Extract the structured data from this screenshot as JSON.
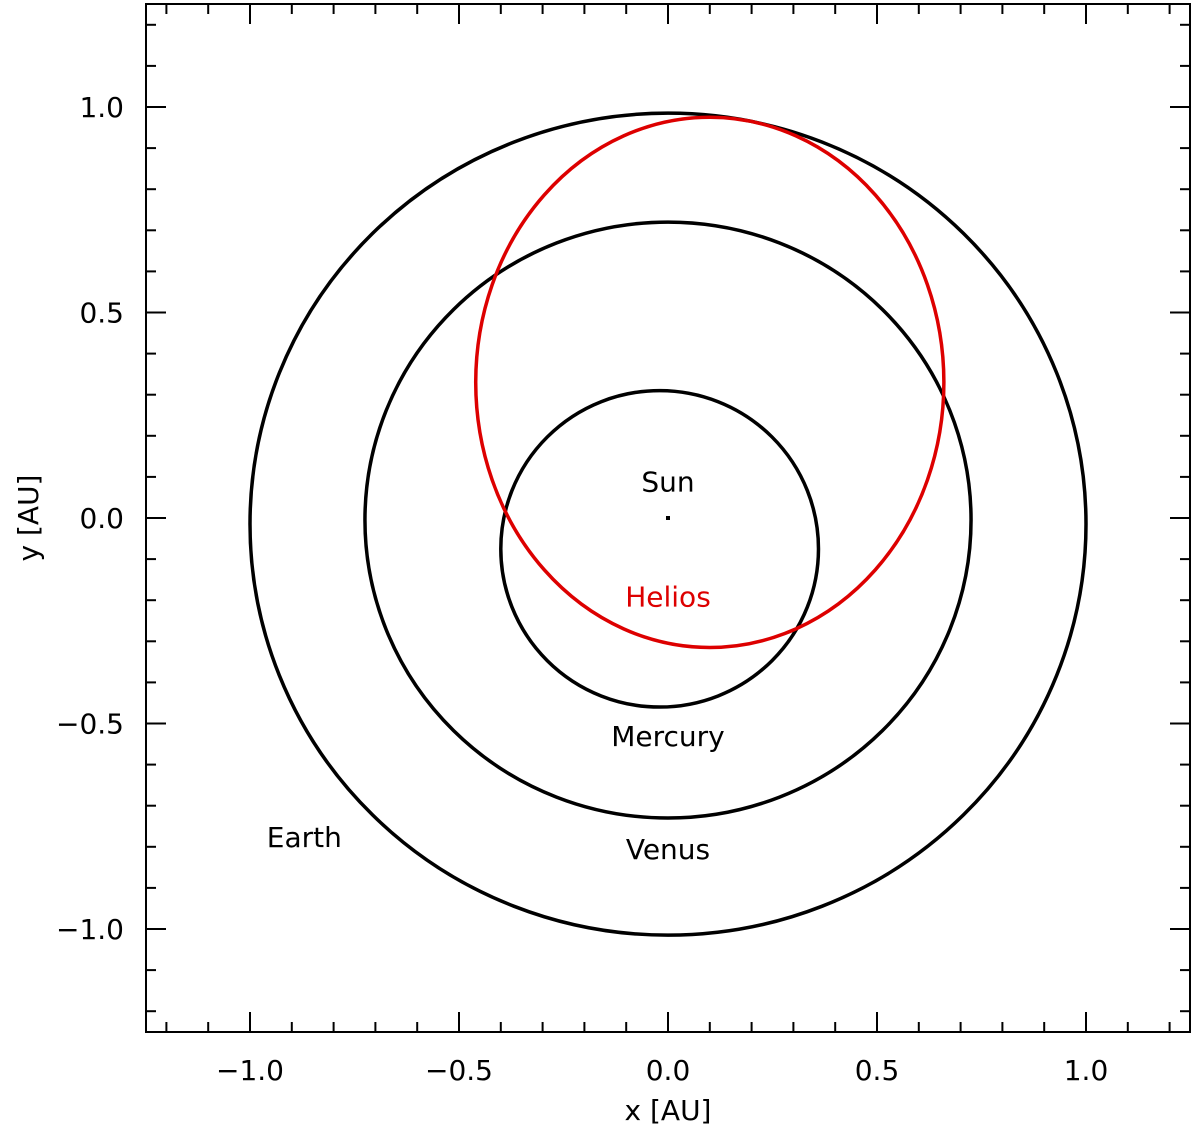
{
  "chart_data": {
    "type": "line",
    "title": "",
    "xlabel": "x [AU]",
    "ylabel": "y [AU]",
    "xlim": [
      -1.25,
      1.25
    ],
    "ylim": [
      -1.25,
      1.25
    ],
    "grid": false,
    "x_ticks": [
      "−1.0",
      "−0.5",
      "0.0",
      "0.5",
      "1.0"
    ],
    "x_tick_values": [
      -1.0,
      -0.5,
      0.0,
      0.5,
      1.0
    ],
    "y_ticks": [
      "1.0",
      "0.5",
      "0.0",
      "−0.5",
      "−1.0"
    ],
    "y_tick_values": [
      1.0,
      0.5,
      0.0,
      -0.5,
      -1.0
    ],
    "series": [
      {
        "name": "Earth",
        "color": "#000000",
        "center": [
          0.0,
          -0.015
        ],
        "rx": 1.0,
        "ry": 1.0
      },
      {
        "name": "Venus",
        "color": "#000000",
        "center": [
          0.0,
          -0.005
        ],
        "rx": 0.725,
        "ry": 0.725
      },
      {
        "name": "Mercury",
        "color": "#000000",
        "center": [
          -0.02,
          -0.075
        ],
        "rx": 0.38,
        "ry": 0.385
      },
      {
        "name": "Helios",
        "color": "#dd0000",
        "center": [
          0.1,
          0.33
        ],
        "rx": 0.56,
        "ry": 0.645
      }
    ],
    "annotations": [
      {
        "text": "Sun",
        "x": 0.0,
        "y": 0.065,
        "color": "#000000"
      },
      {
        "text": "Helios",
        "x": 0.0,
        "y": -0.215,
        "color": "#dd0000"
      },
      {
        "text": "Mercury",
        "x": 0.0,
        "y": -0.555,
        "color": "#000000"
      },
      {
        "text": "Venus",
        "x": 0.0,
        "y": -0.83,
        "color": "#000000"
      },
      {
        "text": "Earth",
        "x": -0.87,
        "y": -0.8,
        "color": "#000000"
      }
    ],
    "sun_marker": {
      "x": 0.0,
      "y": 0.0
    }
  }
}
